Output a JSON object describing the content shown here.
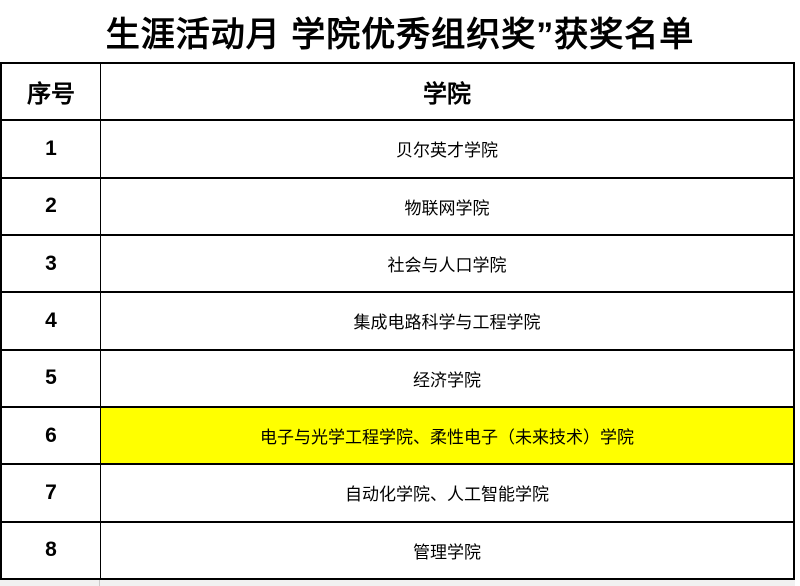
{
  "title": "生涯活动月 学院优秀组织奖”获奖名单",
  "colors": {
    "highlight": "#FFFF00",
    "border": "#000000",
    "background": "#FFFFFF",
    "text": "#000000",
    "partial_row_strip": "#F1F1F1"
  },
  "table": {
    "headers": [
      "序号",
      "学院"
    ],
    "rows": [
      {
        "num": "1",
        "name": "贝尔英才学院",
        "highlighted": false
      },
      {
        "num": "2",
        "name": "物联网学院",
        "highlighted": false
      },
      {
        "num": "3",
        "name": "社会与人口学院",
        "highlighted": false
      },
      {
        "num": "4",
        "name": "集成电路科学与工程学院",
        "highlighted": false
      },
      {
        "num": "5",
        "name": "经济学院",
        "highlighted": false
      },
      {
        "num": "6",
        "name": "电子与光学工程学院、柔性电子（未来技术）学院",
        "highlighted": true
      },
      {
        "num": "7",
        "name": "自动化学院、人工智能学院",
        "highlighted": false
      },
      {
        "num": "8",
        "name": "管理学院",
        "highlighted": false
      }
    ]
  }
}
